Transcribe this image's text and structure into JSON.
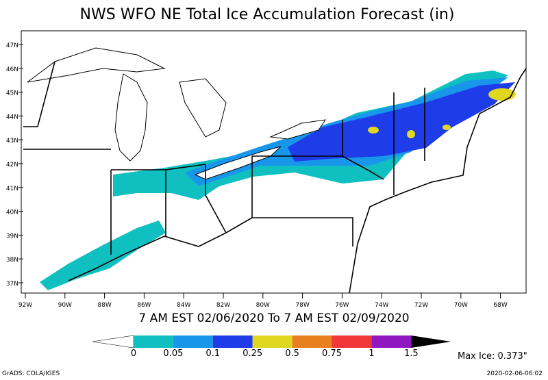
{
  "title": "NWS WFO NE Total Ice Accumulation Forecast (in)",
  "valid_period": "7 AM EST 02/06/2020 To 7 AM EST 02/09/2020",
  "latitude_labels": [
    "47N",
    "46N",
    "45N",
    "44N",
    "43N",
    "42N",
    "41N",
    "40N",
    "39N",
    "38N",
    "37N"
  ],
  "longitude_labels": [
    "92W",
    "90W",
    "88W",
    "86W",
    "84W",
    "82W",
    "80W",
    "78W",
    "76W",
    "74W",
    "72W",
    "70W",
    "68W"
  ],
  "legend": {
    "bounds": [
      0,
      0.05,
      0.1,
      0.25,
      0.5,
      0.75,
      1,
      1.5
    ],
    "colors": [
      "#10c0c0",
      "#1896ea",
      "#1e3ce8",
      "#e0d820",
      "#e88020",
      "#f03838",
      "#9018c0"
    ]
  },
  "max_ice": "Max Ice: 0.373\"",
  "credit": "GrADS: COLA/IGES",
  "timestamp": "2020-02-06-06:02"
}
